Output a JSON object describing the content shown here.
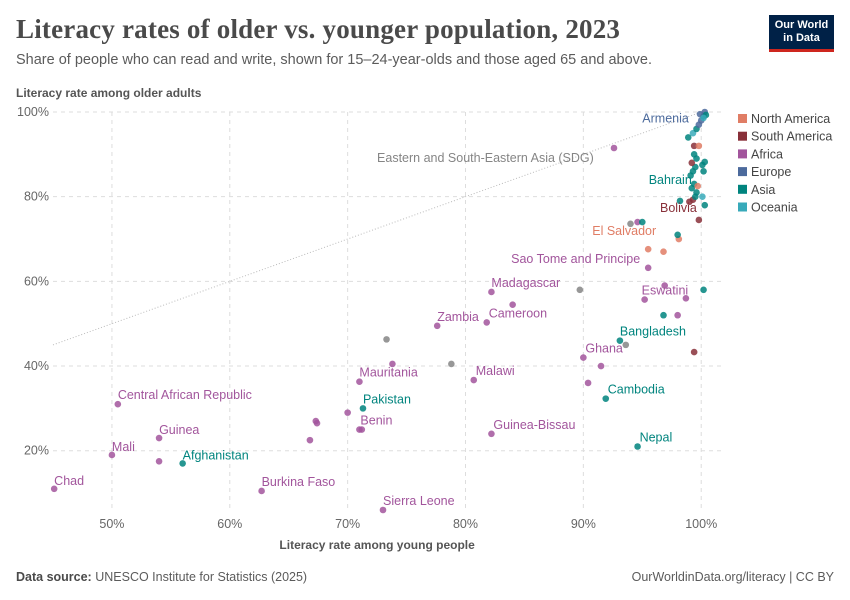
{
  "header": {
    "title": "Literacy rates of older vs. younger population, 2023",
    "subtitle": "Share of people who can read and write, shown for 15–24-year-olds and those aged 65 and above.",
    "logo_line1": "Our World",
    "logo_line2": "in Data"
  },
  "footer": {
    "source_label": "Data source:",
    "source_text": "UNESCO Institute for Statistics (2025)",
    "right_text": "OurWorldinData.org/literacy | CC BY"
  },
  "colors": {
    "North America": "#e07d65",
    "South America": "#883039",
    "Africa": "#a2559c",
    "Europe": "#4c6a9c",
    "Asia": "#00847e",
    "Oceania": "#38aaba",
    "Other": "#858585"
  },
  "chart_data": {
    "type": "scatter",
    "title": "Literacy rates of older vs. younger population, 2023",
    "xlabel": "Literacy rate among young people",
    "ylabel": "Literacy rate among older adults",
    "xlim": [
      45,
      101
    ],
    "ylim": [
      6,
      100
    ],
    "x_ticks": [
      "50%",
      "60%",
      "70%",
      "80%",
      "90%",
      "100%"
    ],
    "x_tick_values": [
      50,
      60,
      70,
      80,
      90,
      100
    ],
    "y_ticks": [
      "20%",
      "40%",
      "60%",
      "80%",
      "100%"
    ],
    "y_tick_values": [
      20,
      40,
      60,
      80,
      100
    ],
    "grid": true,
    "legend_position": "right",
    "legend": [
      "North America",
      "South America",
      "Africa",
      "Europe",
      "Asia",
      "Oceania"
    ],
    "reference_line": {
      "from": [
        45,
        45
      ],
      "to": [
        100,
        100
      ]
    },
    "points": [
      {
        "x": 45.1,
        "y": 11,
        "region": "Africa",
        "label": "Chad"
      },
      {
        "x": 50,
        "y": 19,
        "region": "Africa",
        "label": "Mali"
      },
      {
        "x": 50.5,
        "y": 31,
        "region": "Africa",
        "label": "Central African Republic"
      },
      {
        "x": 54,
        "y": 23,
        "region": "Africa",
        "label": "Guinea"
      },
      {
        "x": 54,
        "y": 17.5,
        "region": "Africa"
      },
      {
        "x": 56,
        "y": 17,
        "region": "Asia",
        "label": "Afghanistan"
      },
      {
        "x": 62.7,
        "y": 10.5,
        "region": "Africa",
        "label": "Burkina Faso"
      },
      {
        "x": 66.8,
        "y": 22.5,
        "region": "Africa"
      },
      {
        "x": 67.3,
        "y": 27,
        "region": "Africa"
      },
      {
        "x": 67.4,
        "y": 26.5,
        "region": "Africa"
      },
      {
        "x": 70,
        "y": 29,
        "region": "Africa"
      },
      {
        "x": 71,
        "y": 25,
        "region": "Africa",
        "label": "Benin"
      },
      {
        "x": 71.2,
        "y": 25,
        "region": "Africa"
      },
      {
        "x": 71,
        "y": 36.3,
        "region": "Africa",
        "label": "Mauritania"
      },
      {
        "x": 71.3,
        "y": 30,
        "region": "Asia",
        "label": "Pakistan"
      },
      {
        "x": 73,
        "y": 6,
        "region": "Africa",
        "label": "Sierra Leone"
      },
      {
        "x": 73.3,
        "y": 46.3,
        "region": "Other"
      },
      {
        "x": 73.8,
        "y": 40.5,
        "region": "Africa"
      },
      {
        "x": 77.6,
        "y": 49.5,
        "region": "Africa",
        "label": "Zambia"
      },
      {
        "x": 78.8,
        "y": 40.5,
        "region": "Other"
      },
      {
        "x": 80.7,
        "y": 36.7,
        "region": "Africa",
        "label": "Malawi"
      },
      {
        "x": 81.8,
        "y": 50.3,
        "region": "Africa",
        "label": "Cameroon"
      },
      {
        "x": 82.2,
        "y": 57.5,
        "region": "Africa",
        "label": "Madagascar"
      },
      {
        "x": 82.2,
        "y": 24,
        "region": "Africa",
        "label": "Guinea-Bissau"
      },
      {
        "x": 84,
        "y": 54.5,
        "region": "Africa"
      },
      {
        "x": 89.7,
        "y": 58,
        "region": "Other",
        "label": "Eastern and South-Eastern Asia (SDG)"
      },
      {
        "x": 90,
        "y": 42,
        "region": "Africa",
        "label": "Ghana"
      },
      {
        "x": 90.4,
        "y": 36,
        "region": "Africa"
      },
      {
        "x": 91.5,
        "y": 40,
        "region": "Africa"
      },
      {
        "x": 91.9,
        "y": 32.3,
        "region": "Asia",
        "label": "Cambodia"
      },
      {
        "x": 92.6,
        "y": 91.5,
        "region": "Africa"
      },
      {
        "x": 93.1,
        "y": 46,
        "region": "Asia",
        "label": "Bangladesh"
      },
      {
        "x": 93.6,
        "y": 45,
        "region": "Other"
      },
      {
        "x": 94.6,
        "y": 21,
        "region": "Asia",
        "label": "Nepal"
      },
      {
        "x": 95.2,
        "y": 55.7,
        "region": "Africa",
        "label": "Eswatini"
      },
      {
        "x": 95.5,
        "y": 63.2,
        "region": "Africa",
        "label": "Sao Tome and Principe"
      },
      {
        "x": 95.5,
        "y": 67.6,
        "region": "North America",
        "label": "El Salvador"
      },
      {
        "x": 94,
        "y": 73.6,
        "region": "Other"
      },
      {
        "x": 94.6,
        "y": 74,
        "region": "Africa"
      },
      {
        "x": 95,
        "y": 74,
        "region": "Asia"
      },
      {
        "x": 96.8,
        "y": 52,
        "region": "Asia"
      },
      {
        "x": 96.8,
        "y": 67,
        "region": "North America"
      },
      {
        "x": 96.9,
        "y": 59,
        "region": "Africa"
      },
      {
        "x": 98,
        "y": 52,
        "region": "Africa"
      },
      {
        "x": 98.1,
        "y": 70,
        "region": "North America"
      },
      {
        "x": 98,
        "y": 71,
        "region": "Asia"
      },
      {
        "x": 98.2,
        "y": 79,
        "region": "Asia"
      },
      {
        "x": 98.9,
        "y": 94,
        "region": "Asia"
      },
      {
        "x": 98.7,
        "y": 56,
        "region": "Africa"
      },
      {
        "x": 99.4,
        "y": 43.3,
        "region": "South America"
      },
      {
        "x": 99.8,
        "y": 74.5,
        "region": "South America",
        "label": "Bolivia"
      },
      {
        "x": 99.0,
        "y": 78.8,
        "region": "South America"
      },
      {
        "x": 99.3,
        "y": 79.3,
        "region": "South America"
      },
      {
        "x": 99.5,
        "y": 80,
        "region": "Asia"
      },
      {
        "x": 99.6,
        "y": 81,
        "region": "Asia"
      },
      {
        "x": 99.2,
        "y": 82,
        "region": "Asia",
        "label": "Bahrain"
      },
      {
        "x": 99.4,
        "y": 83,
        "region": "Asia"
      },
      {
        "x": 99.7,
        "y": 82.5,
        "region": "North America"
      },
      {
        "x": 99.1,
        "y": 85,
        "region": "Asia"
      },
      {
        "x": 99.3,
        "y": 86,
        "region": "Asia"
      },
      {
        "x": 99.5,
        "y": 87,
        "region": "Asia"
      },
      {
        "x": 99.2,
        "y": 88,
        "region": "South America"
      },
      {
        "x": 99.6,
        "y": 89,
        "region": "Asia"
      },
      {
        "x": 99.4,
        "y": 90,
        "region": "Asia"
      },
      {
        "x": 99.4,
        "y": 92,
        "region": "South America"
      },
      {
        "x": 99.8,
        "y": 92,
        "region": "North America"
      },
      {
        "x": 99.3,
        "y": 95,
        "region": "Oceania"
      },
      {
        "x": 99.6,
        "y": 96,
        "region": "Asia"
      },
      {
        "x": 99.8,
        "y": 97,
        "region": "Europe",
        "label": "Armenia"
      },
      {
        "x": 100,
        "y": 98,
        "region": "Europe"
      },
      {
        "x": 100.2,
        "y": 99,
        "region": "Asia"
      },
      {
        "x": 99.9,
        "y": 99.5,
        "region": "Europe"
      },
      {
        "x": 100.3,
        "y": 100,
        "region": "Europe"
      },
      {
        "x": 100.4,
        "y": 99.3,
        "region": "Asia"
      },
      {
        "x": 100.2,
        "y": 98.6,
        "region": "Oceania"
      },
      {
        "x": 100.1,
        "y": 80,
        "region": "Oceania"
      },
      {
        "x": 100.3,
        "y": 78,
        "region": "Asia"
      },
      {
        "x": 100.2,
        "y": 86,
        "region": "Asia"
      },
      {
        "x": 100.1,
        "y": 87.5,
        "region": "Asia"
      },
      {
        "x": 100.3,
        "y": 88.2,
        "region": "Asia"
      },
      {
        "x": 100.2,
        "y": 58,
        "region": "Asia"
      }
    ]
  }
}
